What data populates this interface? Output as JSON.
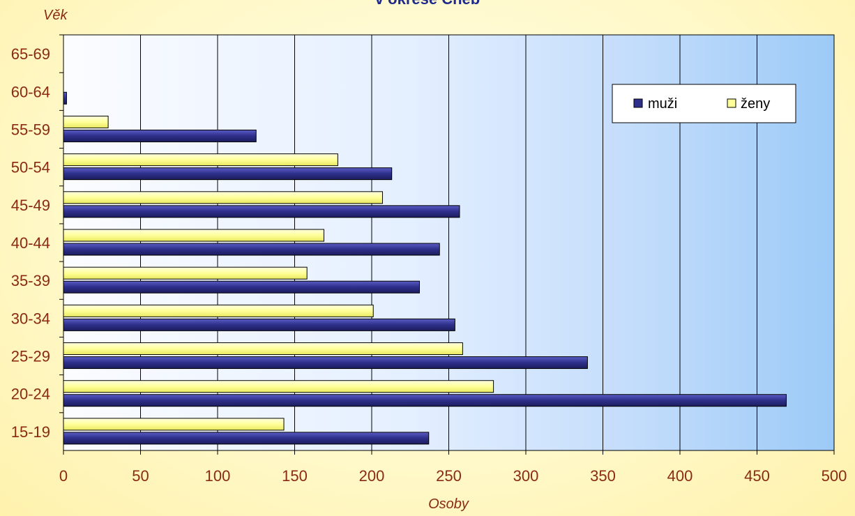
{
  "chart_data": {
    "type": "bar",
    "orientation": "horizontal",
    "title": "v okrese Cheb",
    "xlabel": "Osoby",
    "ylabel": "Věk",
    "xlim": [
      0,
      500
    ],
    "xticks": [
      "0",
      "50",
      "100",
      "150",
      "200",
      "250",
      "300",
      "350",
      "400",
      "450",
      "500"
    ],
    "categories": [
      "15-19",
      "20-24",
      "25-29",
      "30-34",
      "35-39",
      "40-44",
      "45-49",
      "50-54",
      "55-59",
      "60-64",
      "65-69"
    ],
    "series": [
      {
        "name": "muži",
        "color": "#2e2f8a",
        "values": [
          237,
          469,
          340,
          254,
          231,
          244,
          257,
          213,
          125,
          2,
          0
        ]
      },
      {
        "name": "ženy",
        "color": "#ffff99",
        "values": [
          143,
          279,
          259,
          201,
          158,
          169,
          207,
          178,
          29,
          0,
          0
        ]
      }
    ],
    "grid": "vertical",
    "legend_position": "top-right"
  }
}
